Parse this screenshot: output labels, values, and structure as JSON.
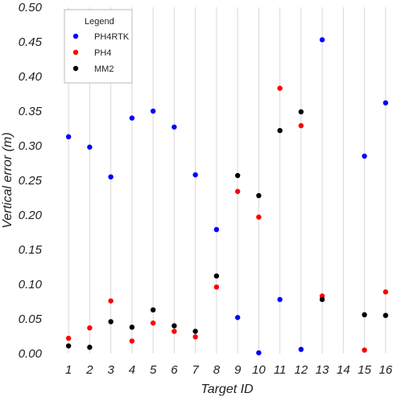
{
  "chart_data": {
    "type": "scatter",
    "xlabel": "Target ID",
    "ylabel": "Vertical error (m)",
    "categories": [
      "1",
      "2",
      "3",
      "4",
      "5",
      "6",
      "7",
      "8",
      "9",
      "10",
      "11",
      "12",
      "13",
      "14",
      "15",
      "16"
    ],
    "x_ticks": [
      "1",
      "2",
      "3",
      "4",
      "5",
      "6",
      "7",
      "8",
      "9",
      "10",
      "11",
      "12",
      "13",
      "14",
      "15",
      "16"
    ],
    "ylim": [
      0,
      0.5
    ],
    "y_ticks": [
      "0.00",
      "0.05",
      "0.10",
      "0.15",
      "0.20",
      "0.25",
      "0.30",
      "0.35",
      "0.40",
      "0.45",
      "0.50"
    ],
    "grid": "vertical",
    "legend": {
      "title": "Legend",
      "position": "top-left"
    },
    "series": [
      {
        "name": "PH4RTK",
        "color": "#0000ff",
        "values": [
          0.313,
          0.298,
          0.255,
          0.34,
          0.35,
          0.327,
          0.258,
          0.179,
          0.052,
          0.001,
          0.078,
          0.006,
          0.453,
          null,
          0.285,
          0.362
        ]
      },
      {
        "name": "PH4",
        "color": "#ff0000",
        "values": [
          0.022,
          0.037,
          0.076,
          0.018,
          0.044,
          0.032,
          0.024,
          0.096,
          0.234,
          0.197,
          0.383,
          0.329,
          0.083,
          null,
          0.005,
          0.089
        ]
      },
      {
        "name": "MM2",
        "color": "#000000",
        "values": [
          0.011,
          0.009,
          0.046,
          0.038,
          0.063,
          0.04,
          0.032,
          0.112,
          0.257,
          0.228,
          0.322,
          0.349,
          0.078,
          null,
          0.056,
          0.055
        ]
      }
    ]
  }
}
